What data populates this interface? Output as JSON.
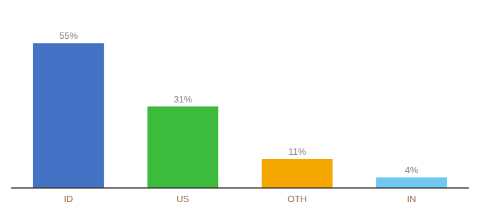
{
  "chart_data": {
    "type": "bar",
    "categories": [
      "ID",
      "US",
      "OTH",
      "IN"
    ],
    "values": [
      55,
      31,
      11,
      4
    ],
    "value_labels": [
      "55%",
      "31%",
      "11%",
      "4%"
    ],
    "colors": [
      "#4472c4",
      "#3dbb3d",
      "#f5a800",
      "#70c8f0"
    ],
    "ylim": [
      0,
      65
    ],
    "data_labels": true,
    "tick_labels": "x",
    "grid": false
  }
}
